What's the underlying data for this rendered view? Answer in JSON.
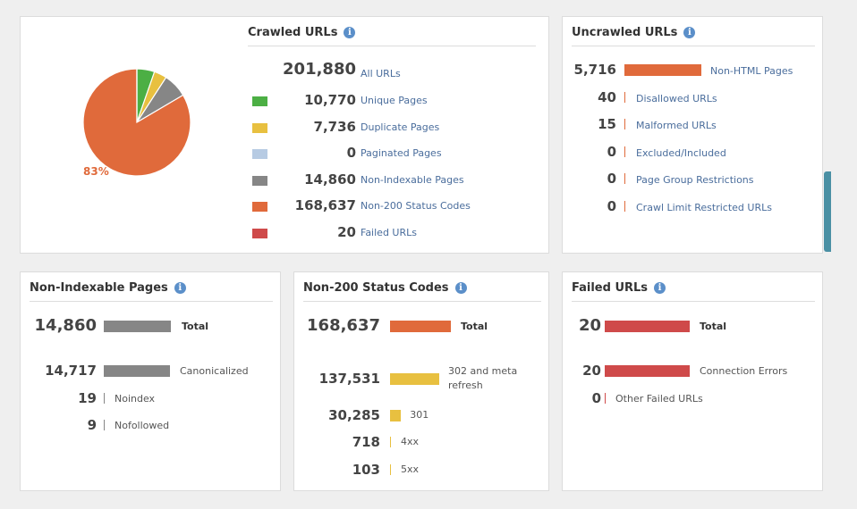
{
  "colors": {
    "unique": "#4caf44",
    "duplicate": "#e8c040",
    "paginated": "#b7cbe3",
    "nonindexable": "#868686",
    "non200": "#e06a3b",
    "failed": "#cf4a4a",
    "yellow": "#e8c040",
    "link": "#4a6d9c"
  },
  "crawled": {
    "title": "Crawled URLs",
    "pie_label": "83%",
    "all": {
      "value": "201,880",
      "label": "All URLs"
    },
    "rows": [
      {
        "value": "10,770",
        "label": "Unique Pages"
      },
      {
        "value": "7,736",
        "label": "Duplicate Pages"
      },
      {
        "value": "0",
        "label": "Paginated Pages"
      },
      {
        "value": "14,860",
        "label": "Non-Indexable Pages"
      },
      {
        "value": "168,637",
        "label": "Non-200 Status Codes"
      },
      {
        "value": "20",
        "label": "Failed URLs"
      }
    ]
  },
  "chart_data": {
    "type": "pie",
    "title": "",
    "series": [
      {
        "values": [
          10770,
          7736,
          0,
          14860,
          168637,
          20
        ],
        "categories": [
          "Unique Pages",
          "Duplicate Pages",
          "Paginated Pages",
          "Non-Indexable Pages",
          "Non-200 Status Codes",
          "Failed URLs"
        ]
      }
    ],
    "annotations": [
      "83%"
    ]
  },
  "uncrawled": {
    "title": "Uncrawled URLs",
    "rows": [
      {
        "value": "5,716",
        "label": "Non-HTML Pages",
        "bar": 1.0
      },
      {
        "value": "40",
        "label": "Disallowed URLs",
        "bar": 0.007
      },
      {
        "value": "15",
        "label": "Malformed URLs",
        "bar": 0.003
      },
      {
        "value": "0",
        "label": "Excluded/Included",
        "bar": 0
      },
      {
        "value": "0",
        "label": "Page Group Restrictions",
        "bar": 0
      },
      {
        "value": "0",
        "label": "Crawl Limit Restricted URLs",
        "bar": 0
      }
    ]
  },
  "nonindexable": {
    "title": "Non-Indexable Pages",
    "total": {
      "value": "14,860",
      "label": "Total",
      "bar": 1.0
    },
    "rows": [
      {
        "value": "14,717",
        "label": "Canonicalized",
        "bar": 0.99
      },
      {
        "value": "19",
        "label": "Noindex",
        "bar": 0.001
      },
      {
        "value": "9",
        "label": "Nofollowed",
        "bar": 0.0006
      }
    ]
  },
  "non200": {
    "title": "Non-200 Status Codes",
    "total": {
      "value": "168,637",
      "label": "Total",
      "bar": 1.0
    },
    "rows": [
      {
        "value": "137,531",
        "label_line1": "302 and meta",
        "label_line2": "refresh",
        "bar": 0.815
      },
      {
        "value": "30,285",
        "label": "301",
        "bar": 0.18
      },
      {
        "value": "718",
        "label": "4xx",
        "bar": 0.004
      },
      {
        "value": "103",
        "label": "5xx",
        "bar": 0.0006
      }
    ]
  },
  "failed": {
    "title": "Failed URLs",
    "total": {
      "value": "20",
      "label": "Total",
      "bar": 1.0
    },
    "rows": [
      {
        "value": "20",
        "label": "Connection Errors",
        "bar": 1.0
      },
      {
        "value": "0",
        "label": "Other Failed URLs",
        "bar": 0
      }
    ]
  }
}
